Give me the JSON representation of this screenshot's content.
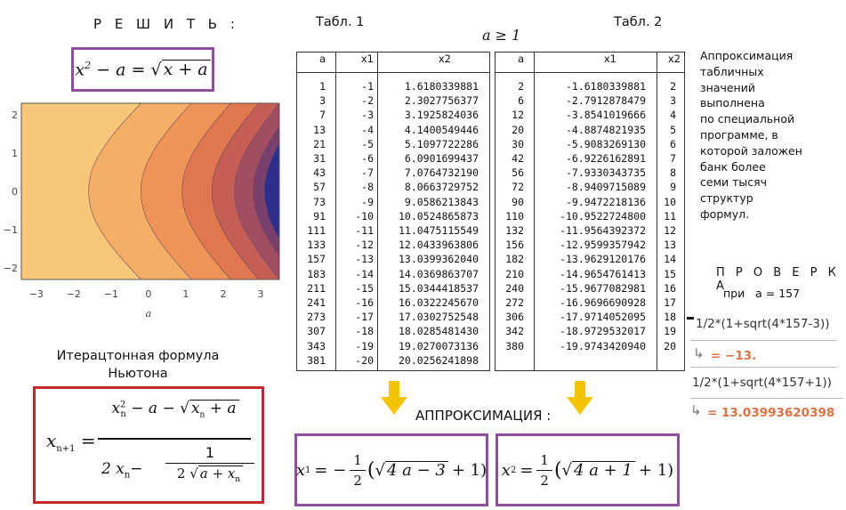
{
  "solve_title": "Р Е Ш И Т Ь :",
  "equation": {
    "lhs_var": "x",
    "lhs_exp": "2",
    "minus": "− a =",
    "sqrt_content": "x + a"
  },
  "contour_plot": {
    "x_ticks": [
      "−3",
      "−2",
      "−1",
      "0",
      "1",
      "2",
      "3"
    ],
    "y_ticks": [
      "2",
      "1",
      "0",
      "−1",
      "−2"
    ],
    "x_axis_label": "a",
    "colors": [
      "#f9c77a",
      "#f5ae66",
      "#ee9458",
      "#e0774f",
      "#c55f55",
      "#a24e62",
      "#7a3f6d",
      "#2e2e8c"
    ]
  },
  "newton_title": "Итерацтонная  формула\nНьютона",
  "newton_formula": {
    "lhs": "x",
    "lhs_sub": "n+1",
    "eq": "=",
    "num_x": "x",
    "num_sup": "2",
    "num_sub": "n",
    "num_rest": "− a −",
    "num_sqrt": "x",
    "num_sqrt_sub": "n",
    "num_sqrt_rest": "+ a",
    "den_a": "2 x",
    "den_sub": "n",
    "den_minus": "−",
    "den_frac_num": "1",
    "den_frac_den_pre": "2",
    "den_frac_sqrt": "a + x",
    "den_frac_sqrt_sub": "n"
  },
  "table1": {
    "caption": "Табл. 1",
    "headers": [
      "a",
      "x1",
      "x2"
    ],
    "rows": [
      [
        "1",
        "-1",
        "1.6180339881"
      ],
      [
        "3",
        "-2",
        "2.3027756377"
      ],
      [
        "7",
        "-3",
        "3.1925824036"
      ],
      [
        "13",
        "-4",
        "4.1400549446"
      ],
      [
        "21",
        "-5",
        "5.1097722286"
      ],
      [
        "31",
        "-6",
        "6.0901699437"
      ],
      [
        "43",
        "-7",
        "7.0764732190"
      ],
      [
        "57",
        "-8",
        "8.0663729752"
      ],
      [
        "73",
        "-9",
        "9.0586213843"
      ],
      [
        "91",
        "-10",
        "10.0524865873"
      ],
      [
        "111",
        "-11",
        "11.0475115549"
      ],
      [
        "133",
        "-12",
        "12.0433963806"
      ],
      [
        "157",
        "-13",
        "13.0399362040"
      ],
      [
        "183",
        "-14",
        "14.0369863707"
      ],
      [
        "211",
        "-15",
        "15.0344418537"
      ],
      [
        "241",
        "-16",
        "16.0322245670"
      ],
      [
        "273",
        "-17",
        "17.0302752548"
      ],
      [
        "307",
        "-18",
        "18.0285481430"
      ],
      [
        "343",
        "-19",
        "19.0270073136"
      ],
      [
        "381",
        "-20",
        "20.0256241898"
      ]
    ]
  },
  "condition": "a ≥ 1",
  "table2": {
    "caption": "Табл. 2",
    "headers": [
      "a",
      "x1",
      "x2"
    ],
    "rows": [
      [
        "2",
        "-1.6180339881",
        "2"
      ],
      [
        "6",
        "-2.7912878479",
        "3"
      ],
      [
        "12",
        "-3.8541019666",
        "4"
      ],
      [
        "20",
        "-4.8874821935",
        "5"
      ],
      [
        "30",
        "-5.9083269130",
        "6"
      ],
      [
        "42",
        "-6.9226162891",
        "7"
      ],
      [
        "56",
        "-7.9330343735",
        "8"
      ],
      [
        "72",
        "-8.9409715089",
        "9"
      ],
      [
        "90",
        "-9.9472218136",
        "10"
      ],
      [
        "110",
        "-10.9522724800",
        "11"
      ],
      [
        "132",
        "-11.9564392372",
        "12"
      ],
      [
        "156",
        "-12.9599357942",
        "13"
      ],
      [
        "182",
        "-13.9629120176",
        "14"
      ],
      [
        "210",
        "-14.9654761413",
        "15"
      ],
      [
        "240",
        "-15.9677082981",
        "16"
      ],
      [
        "272",
        "-16.9696690928",
        "17"
      ],
      [
        "306",
        "-17.9714052095",
        "18"
      ],
      [
        "342",
        "-18.9729532017",
        "19"
      ],
      [
        "380",
        "-19.9743420940",
        "20"
      ]
    ]
  },
  "approx_note": "Аппроксимация\nтабличных\nзначений\nвыполнена\nпо специальной\nпрограмме, в\nкоторой заложен\nбанк более\nсеми тысяч\nструктур\nформул.",
  "check": {
    "title": "П Р О В Е Р К А",
    "subtitle": "при   a = 157",
    "expr1": "1/2*(1+sqrt(4*157-3))",
    "result1": "= −13.",
    "expr2": "1/2*(1+sqrt(4*157+1))",
    "result2": "=  13.03993620398",
    "arrow": "↳"
  },
  "approx_label": "АППРОКСИМАЦИЯ :",
  "formula_x1": {
    "lhs": "x",
    "sub": "1",
    "eq": "= −",
    "num": "1",
    "den": "2",
    "sqrt": "4 a − 3",
    "rest": "+ 1)",
    "open": "("
  },
  "formula_x2": {
    "lhs": "x",
    "sub": "2",
    "eq": "=",
    "num": "1",
    "den": "2",
    "sqrt": "4 a + 1",
    "rest": "+ 1)",
    "open": "("
  },
  "colors": {
    "purple": "#8e4fa0",
    "red": "#c0282b",
    "arrow": "#f5c400",
    "result": "#e2703e"
  }
}
